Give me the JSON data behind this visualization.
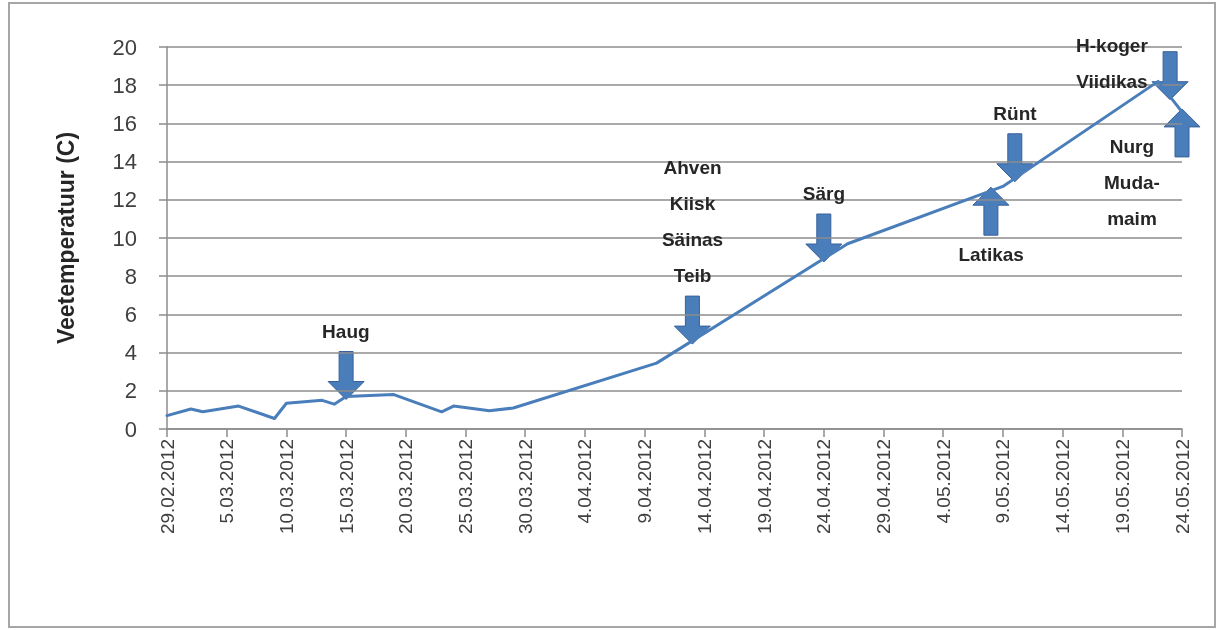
{
  "chart_data": {
    "type": "line",
    "ylabel": "Veetemperatuur (C)",
    "x": [
      "2012-02-29",
      "2012-03-02",
      "2012-03-03",
      "2012-03-06",
      "2012-03-09",
      "2012-03-10",
      "2012-03-13",
      "2012-03-14",
      "2012-03-15",
      "2012-03-19",
      "2012-03-23",
      "2012-03-24",
      "2012-03-27",
      "2012-03-29",
      "2012-04-10",
      "2012-04-26",
      "2012-05-09",
      "2012-05-22",
      "2012-05-24"
    ],
    "values": [
      0.7,
      1.05,
      0.9,
      1.2,
      0.55,
      1.35,
      1.5,
      1.3,
      1.7,
      1.8,
      0.9,
      1.2,
      0.95,
      1.1,
      3.45,
      9.7,
      12.7,
      18.2,
      16.6
    ],
    "color": "#4a7ebb",
    "xlim": [
      "2012-02-29",
      "2012-05-24"
    ],
    "xticks": [
      {
        "value": "2012-02-29",
        "label": "29.02.2012"
      },
      {
        "value": "2012-03-05",
        "label": "5.03.2012"
      },
      {
        "value": "2012-03-10",
        "label": "10.03.2012"
      },
      {
        "value": "2012-03-15",
        "label": "15.03.2012"
      },
      {
        "value": "2012-03-20",
        "label": "20.03.2012"
      },
      {
        "value": "2012-03-25",
        "label": "25.03.2012"
      },
      {
        "value": "2012-03-30",
        "label": "30.03.2012"
      },
      {
        "value": "2012-04-04",
        "label": "4.04.2012"
      },
      {
        "value": "2012-04-09",
        "label": "9.04.2012"
      },
      {
        "value": "2012-04-14",
        "label": "14.04.2012"
      },
      {
        "value": "2012-04-19",
        "label": "19.04.2012"
      },
      {
        "value": "2012-04-24",
        "label": "24.04.2012"
      },
      {
        "value": "2012-04-29",
        "label": "29.04.2012"
      },
      {
        "value": "2012-05-04",
        "label": "4.05.2012"
      },
      {
        "value": "2012-05-09",
        "label": "9.05.2012"
      },
      {
        "value": "2012-05-14",
        "label": "14.05.2012"
      },
      {
        "value": "2012-05-19",
        "label": "19.05.2012"
      },
      {
        "value": "2012-05-24",
        "label": "24.05.2012"
      }
    ],
    "ylim": [
      0,
      20
    ],
    "yticks": [
      0,
      2,
      4,
      6,
      8,
      10,
      12,
      14,
      16,
      18,
      20
    ],
    "grid": "y",
    "marker": "none",
    "annotations": [
      {
        "text": "Haug",
        "x": "2012-03-15",
        "y": 1.7
      },
      {
        "text": "Ahven\nKiisk\nSäinas\nTeib",
        "x": "2012-04-13",
        "y": 4.6
      },
      {
        "text": "Särg",
        "x": "2012-04-24",
        "y": 8.9
      },
      {
        "text": "Rünt",
        "x": "2012-05-10",
        "y": 13.1
      },
      {
        "text": "Latikas",
        "x": "2012-05-08",
        "y": 12.5
      },
      {
        "text": "H-koger\nViidikas",
        "x": "2012-05-23",
        "y": 17.4
      },
      {
        "text": "Nurg\nMuda-\nmaim",
        "x": "2012-05-24",
        "y": 16.6
      }
    ]
  }
}
